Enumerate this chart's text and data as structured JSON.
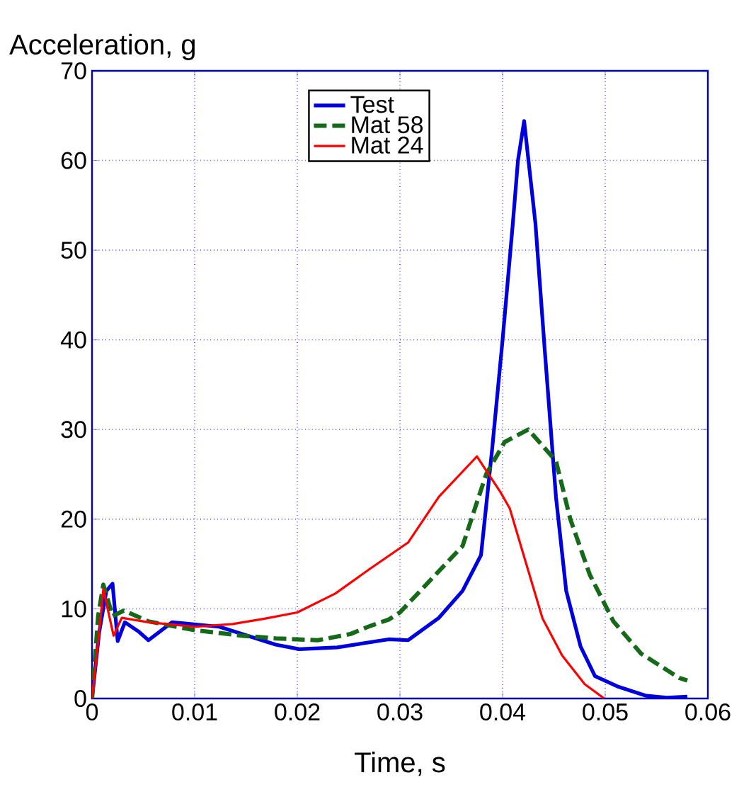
{
  "chart_data": {
    "type": "line",
    "xlabel": "Time, s",
    "ylabel": "Acceleration, g",
    "xlim": [
      0,
      0.06
    ],
    "xticks": [
      0,
      0.01,
      0.02,
      0.03,
      0.04,
      0.05,
      0.06
    ],
    "ylim": [
      0,
      70
    ],
    "yticks": [
      0,
      10,
      20,
      30,
      40,
      50,
      60,
      70
    ],
    "grid": true,
    "legend": "top",
    "marker": "none",
    "series": [
      {
        "name": "Test",
        "color": "#0000dd",
        "line_style": "solid",
        "x": [
          0,
          0.0007,
          0.0014,
          0.002,
          0.0025,
          0.0032,
          0.0045,
          0.0055,
          0.0078,
          0.0124,
          0.0179,
          0.0202,
          0.0239,
          0.0289,
          0.0308,
          0.0338,
          0.0361,
          0.0379,
          0.039,
          0.04,
          0.041,
          0.0415,
          0.0421,
          0.0432,
          0.0441,
          0.0452,
          0.0462,
          0.0476,
          0.049,
          0.0513,
          0.054,
          0.056,
          0.058
        ],
        "values": [
          0,
          7.4,
          12,
          12.8,
          6.4,
          8.5,
          7.5,
          6.5,
          8.5,
          8,
          6,
          5.5,
          5.7,
          6.6,
          6.5,
          9,
          12,
          16,
          28,
          40,
          53,
          60,
          64.4,
          53,
          39,
          22.5,
          12,
          5.8,
          2.5,
          1.3,
          0.3,
          0.1,
          0.2
        ]
      },
      {
        "name": "Mat 58",
        "color": "#17691a",
        "line_style": "dashed",
        "x": [
          0,
          0.0006,
          0.0011,
          0.002,
          0.0031,
          0.0055,
          0.0101,
          0.0147,
          0.0179,
          0.022,
          0.0252,
          0.0269,
          0.0289,
          0.03,
          0.0361,
          0.0384,
          0.0402,
          0.0425,
          0.0452,
          0.0466,
          0.0485,
          0.0508,
          0.0535,
          0.0572,
          0.058
        ],
        "values": [
          0,
          9.2,
          12.7,
          9.2,
          9.8,
          8.6,
          7.6,
          7,
          6.7,
          6.5,
          7.2,
          8,
          8.8,
          9.6,
          17,
          25,
          28.6,
          30,
          26.5,
          20,
          13.8,
          8.6,
          5,
          2.3,
          2
        ]
      },
      {
        "name": "Mat 24",
        "color": "#ff0000",
        "line_style": "solid",
        "x": [
          0,
          0.0007,
          0.0011,
          0.0021,
          0.0029,
          0.0055,
          0.0101,
          0.0137,
          0.0168,
          0.02,
          0.0237,
          0.027,
          0.0308,
          0.0338,
          0.0375,
          0.0398,
          0.0407,
          0.0421,
          0.0439,
          0.0458,
          0.048,
          0.0499
        ],
        "values": [
          0,
          7.4,
          12.2,
          7,
          9,
          8.5,
          8,
          8.3,
          8.9,
          9.6,
          11.7,
          14.4,
          17.4,
          22.5,
          27,
          23,
          21.2,
          15.8,
          8.9,
          4.8,
          1.6,
          0
        ]
      }
    ]
  }
}
